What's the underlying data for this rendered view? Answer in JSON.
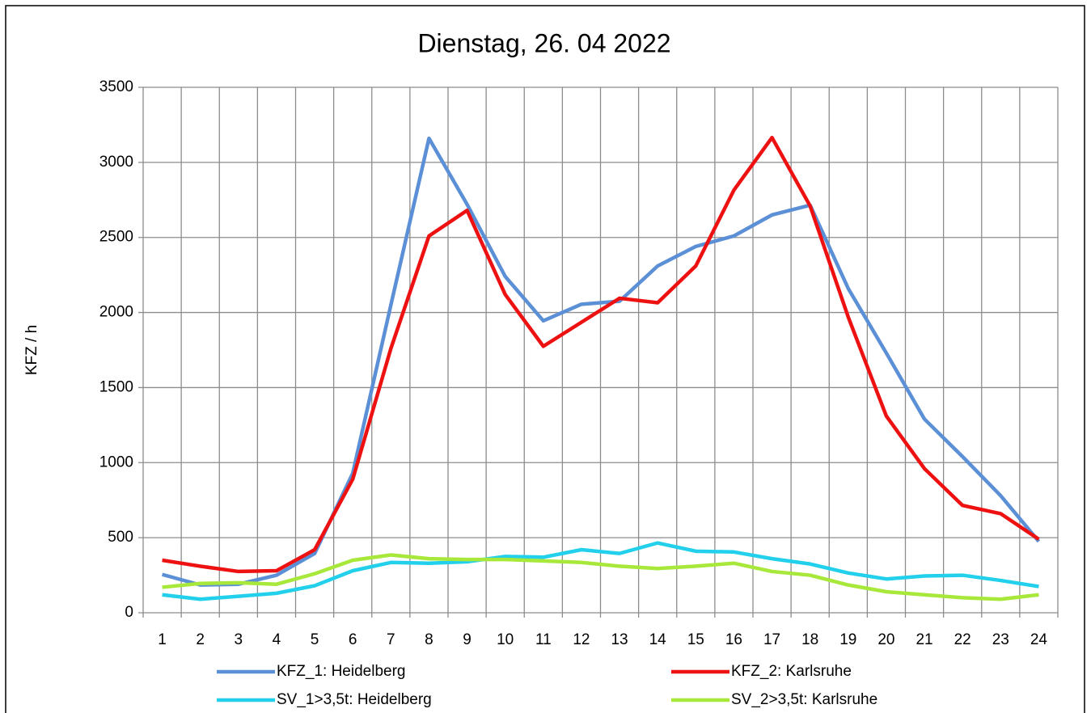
{
  "chart_data": {
    "type": "line",
    "title": "Dienstag, 26. 04 2022",
    "y_label": "KFZ / h",
    "categories": [
      1,
      2,
      3,
      4,
      5,
      6,
      7,
      8,
      9,
      10,
      11,
      12,
      13,
      14,
      15,
      16,
      17,
      18,
      19,
      20,
      21,
      22,
      23,
      24
    ],
    "series": [
      {
        "name": "KFZ_1: Heidelberg",
        "color": "#5b8fd6",
        "values": [
          255,
          185,
          190,
          250,
          395,
          930,
          2050,
          3160,
          2720,
          2240,
          1945,
          2055,
          2075,
          2310,
          2440,
          2510,
          2650,
          2715,
          2160,
          1730,
          1290,
          1040,
          780,
          475
        ]
      },
      {
        "name": "KFZ_2: Karlsruhe",
        "color": "#ee1111",
        "values": [
          350,
          310,
          275,
          280,
          420,
          890,
          1760,
          2510,
          2680,
          2120,
          1775,
          1935,
          2095,
          2065,
          2310,
          2815,
          3165,
          2710,
          1970,
          1310,
          960,
          715,
          660,
          490
        ]
      },
      {
        "name": "SV_1>3,5t: Heidelberg",
        "color": "#22d0ec",
        "values": [
          120,
          90,
          110,
          130,
          180,
          280,
          335,
          330,
          340,
          375,
          370,
          420,
          395,
          465,
          410,
          405,
          360,
          325,
          265,
          225,
          245,
          250,
          215,
          175
        ]
      },
      {
        "name": "SV_2>3,5t: Karlsruhe",
        "color": "#a8e83a",
        "values": [
          170,
          195,
          200,
          190,
          260,
          350,
          385,
          360,
          355,
          355,
          345,
          335,
          310,
          295,
          310,
          330,
          275,
          250,
          185,
          140,
          120,
          100,
          90,
          120
        ]
      }
    ],
    "ylim": [
      0,
      3500
    ],
    "yticks": [
      0,
      500,
      1000,
      1500,
      2000,
      2500,
      3000,
      3500
    ],
    "grid": true,
    "legend": "bottom"
  }
}
